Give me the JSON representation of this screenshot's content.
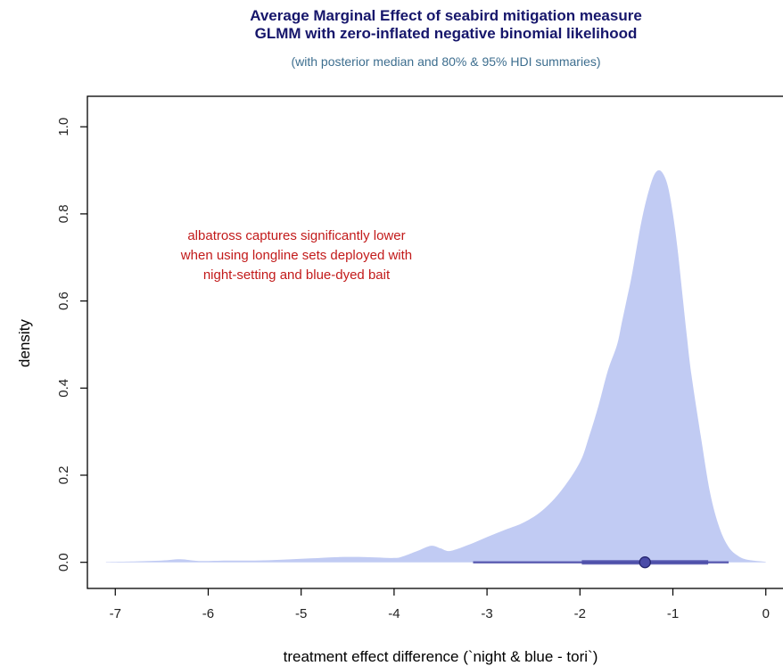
{
  "chart_data": {
    "type": "area",
    "title_line1": "Average Marginal Effect of seabird mitigation measure",
    "title_line2": "GLMM with zero-inflated negative binomial likelihood",
    "subtitle": "(with posterior median and 80% & 95% HDI summaries)",
    "xlabel": "treatment effect difference (`night & blue - tori`)",
    "ylabel": "density",
    "xlim": [
      -7.3,
      0.3
    ],
    "ylim": [
      -0.06,
      1.07
    ],
    "x_ticks": [
      -7,
      -6,
      -5,
      -4,
      -3,
      -2,
      -1,
      0
    ],
    "x_tick_labels": [
      "-7",
      "-6",
      "-5",
      "-4",
      "-3",
      "-2",
      "-1",
      "0"
    ],
    "y_ticks": [
      0.0,
      0.2,
      0.4,
      0.6,
      0.8,
      1.0
    ],
    "y_tick_labels": [
      "0.0",
      "0.2",
      "0.4",
      "0.6",
      "0.8",
      "1.0"
    ],
    "density_x": [
      -7.1,
      -6.8,
      -6.5,
      -6.3,
      -6.1,
      -5.8,
      -5.5,
      -5.2,
      -4.9,
      -4.6,
      -4.3,
      -4.0,
      -3.9,
      -3.75,
      -3.6,
      -3.5,
      -3.4,
      -3.2,
      -3.0,
      -2.8,
      -2.6,
      -2.4,
      -2.2,
      -2.0,
      -1.9,
      -1.8,
      -1.7,
      -1.6,
      -1.55,
      -1.5,
      -1.45,
      -1.4,
      -1.35,
      -1.3,
      -1.25,
      -1.2,
      -1.15,
      -1.1,
      -1.05,
      -1.0,
      -0.95,
      -0.9,
      -0.85,
      -0.8,
      -0.7,
      -0.6,
      -0.5,
      -0.4,
      -0.3,
      -0.2,
      0.0
    ],
    "density_y": [
      0.001,
      0.002,
      0.004,
      0.007,
      0.003,
      0.004,
      0.004,
      0.006,
      0.009,
      0.012,
      0.012,
      0.01,
      0.014,
      0.026,
      0.038,
      0.032,
      0.026,
      0.04,
      0.058,
      0.075,
      0.092,
      0.12,
      0.165,
      0.23,
      0.29,
      0.36,
      0.44,
      0.5,
      0.55,
      0.6,
      0.65,
      0.71,
      0.77,
      0.82,
      0.86,
      0.89,
      0.9,
      0.89,
      0.86,
      0.8,
      0.72,
      0.62,
      0.52,
      0.43,
      0.29,
      0.16,
      0.08,
      0.035,
      0.015,
      0.006,
      0.001
    ],
    "fill_color": "#c1cbf3",
    "hdi_color": "#4b4ca8",
    "median": -1.3,
    "hdi_80": [
      -1.98,
      -0.62
    ],
    "hdi_95": [
      -3.15,
      -0.4
    ],
    "annotation": [
      "albatross captures significantly lower",
      "when using longline sets deployed with",
      "night-setting and blue-dyed bait"
    ],
    "annotation_x": -5.05,
    "annotation_y": [
      0.74,
      0.695,
      0.65
    ],
    "annotation_color": "#c21a1a",
    "grid": false
  }
}
